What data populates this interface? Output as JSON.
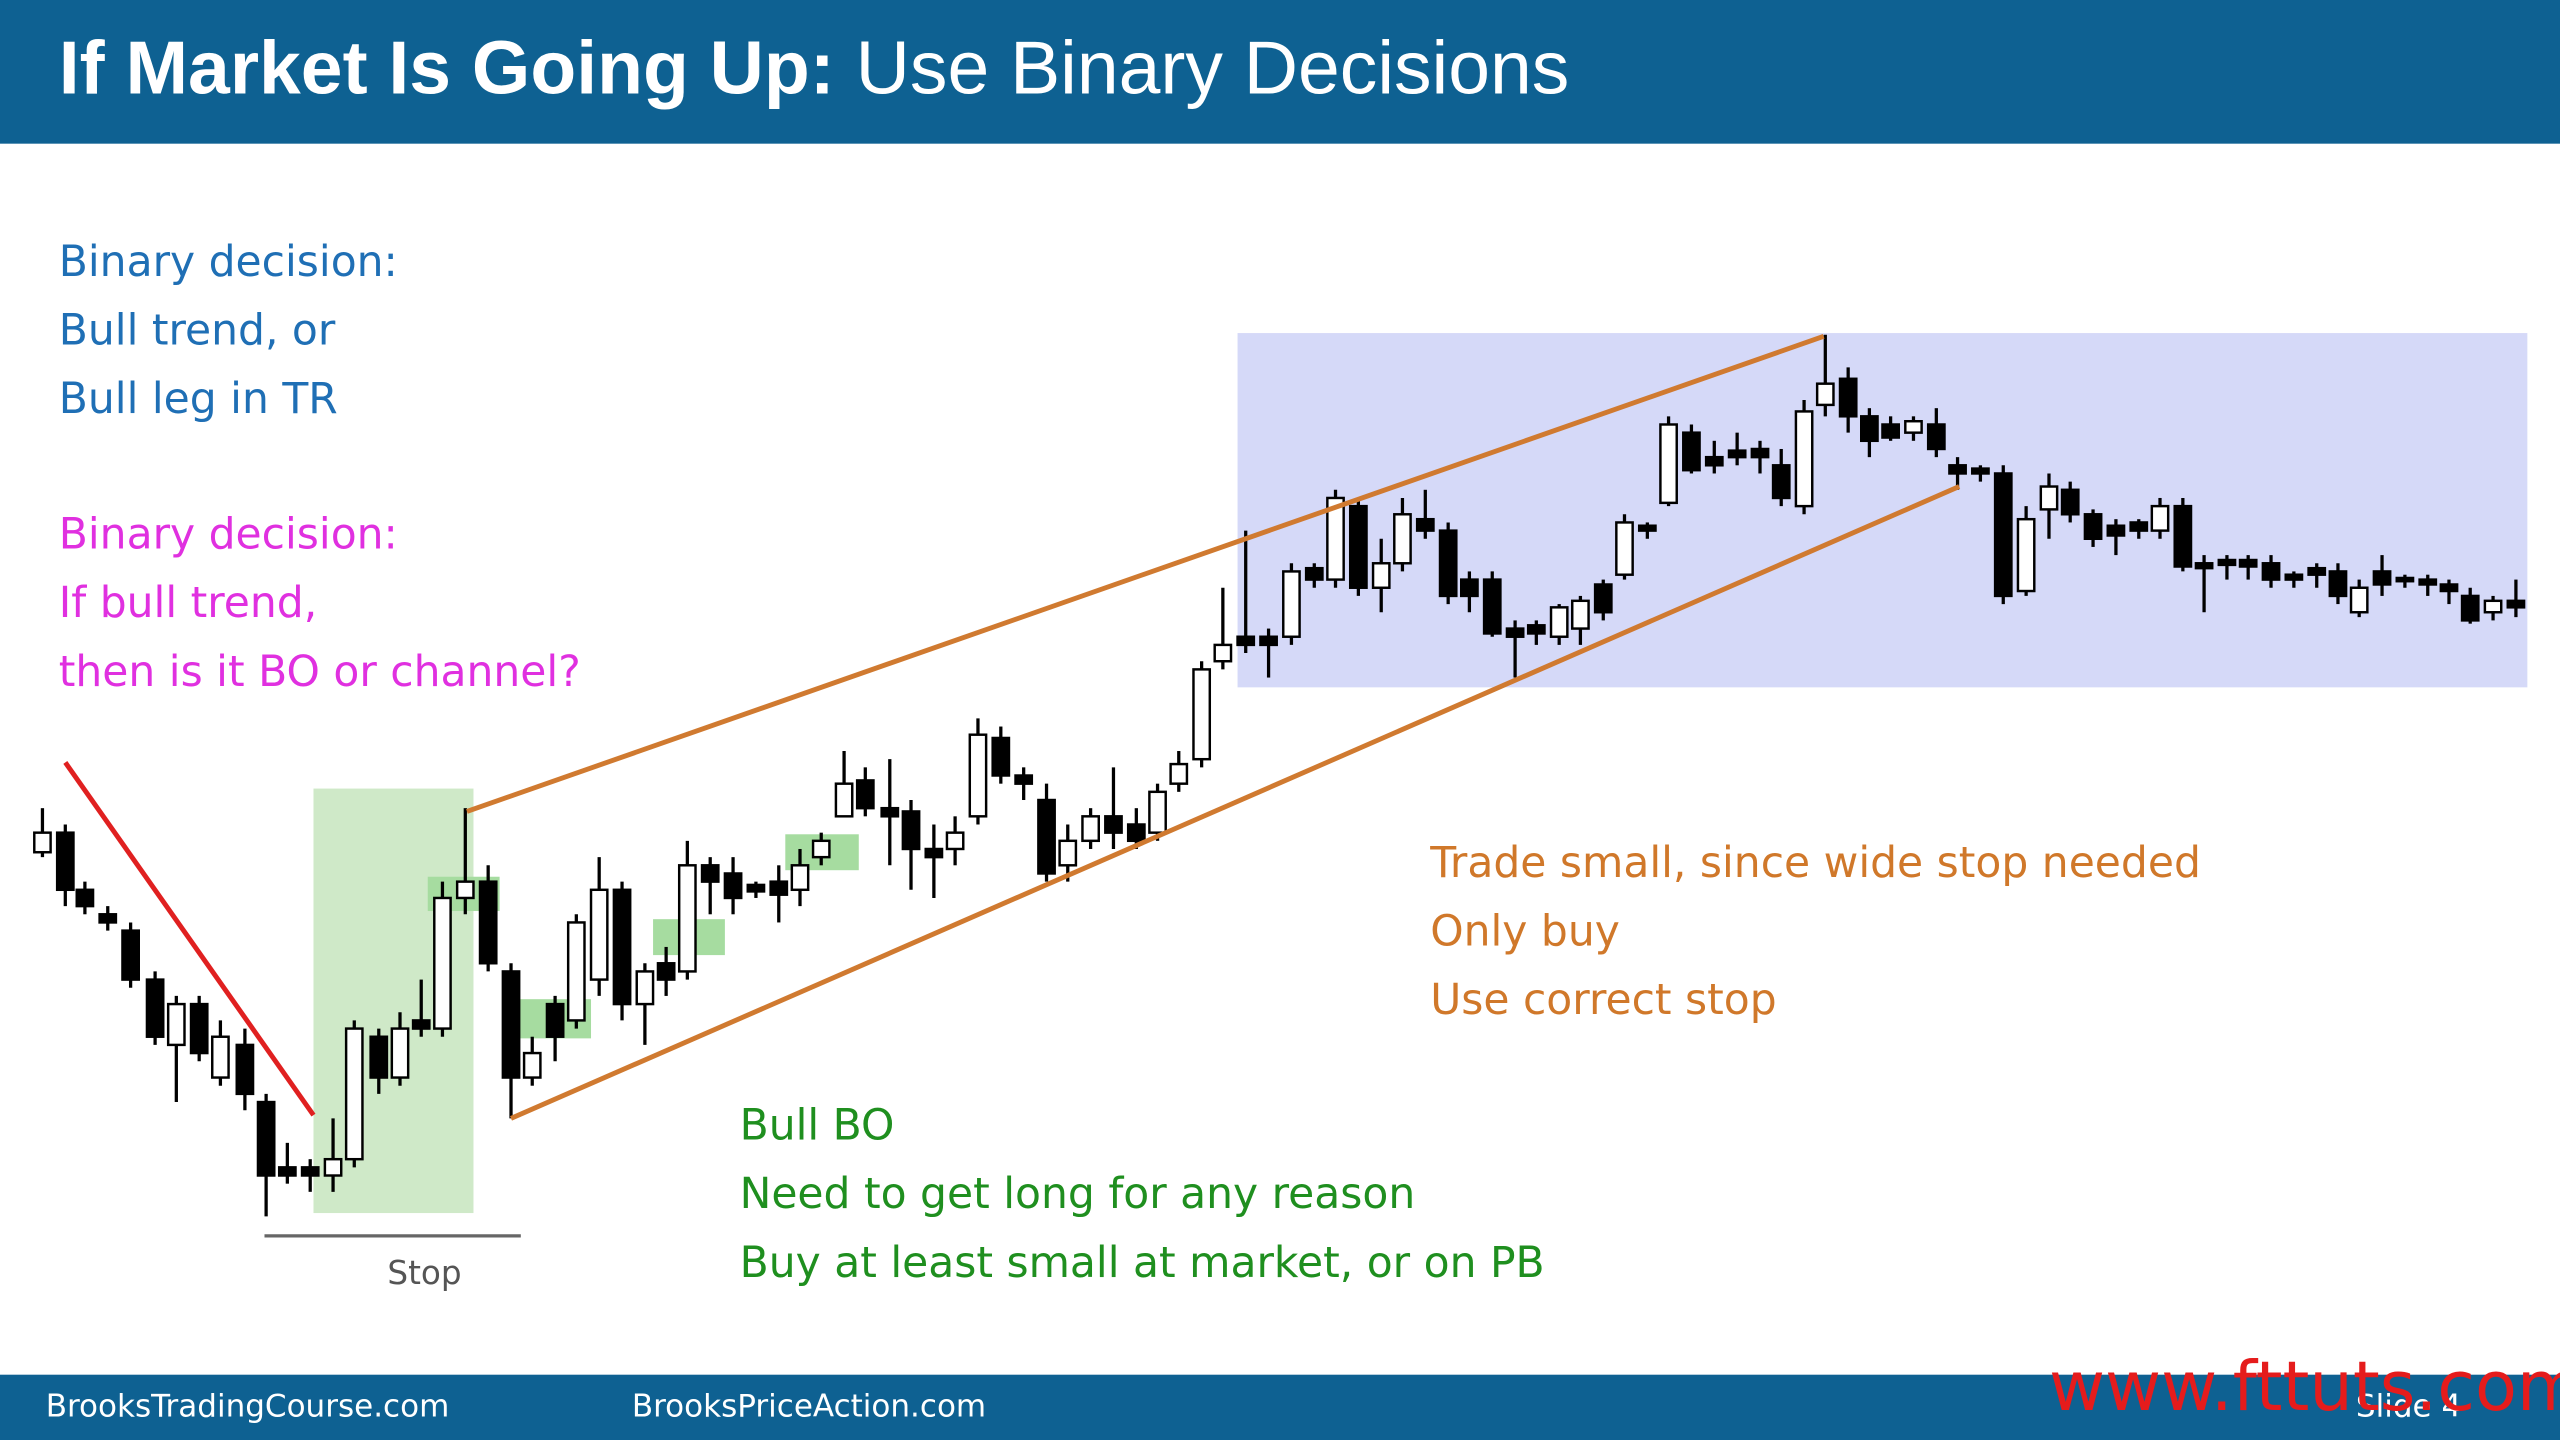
{
  "header": {
    "title_bold": "If Market Is Going Up:",
    "title_rest": "Use Binary Decisions"
  },
  "notes": {
    "blue": [
      "Binary decision:",
      "Bull trend, or",
      "Bull leg in TR"
    ],
    "magenta": [
      "Binary decision:",
      "If bull trend,",
      "then is it BO or channel?"
    ],
    "orange": [
      "Trade small, since wide stop needed",
      "Only buy",
      "Use correct stop"
    ],
    "green": [
      "Bull BO",
      "Need to get long for any reason",
      "Buy at least small at market, or on PB"
    ]
  },
  "stop_label": "Stop",
  "footer": {
    "left": "BrooksTradingCourse.com",
    "middle": "BrooksPriceAction.com",
    "slide": "Slide 4"
  },
  "watermark": "www.fttuts.com"
}
